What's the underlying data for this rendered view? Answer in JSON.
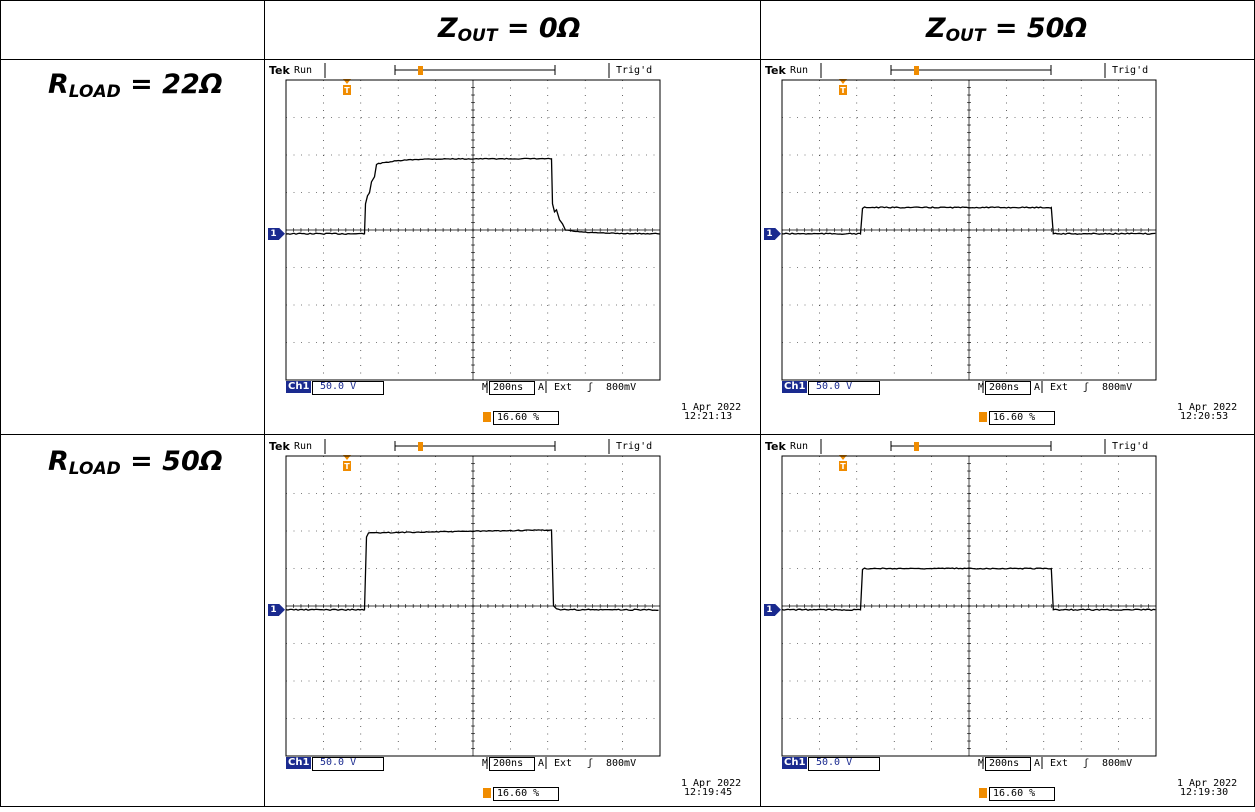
{
  "table": {
    "col_header_1": {
      "main": "Z",
      "sub": "OUT",
      "rest": " = 0Ω"
    },
    "col_header_2": {
      "main": "Z",
      "sub": "OUT",
      "rest": " = 50Ω"
    },
    "row_header_1": {
      "main": "R",
      "sub": "LOAD",
      "rest": " = 22Ω"
    },
    "row_header_2": {
      "main": "R",
      "sub": "LOAD",
      "rest": " = 50Ω"
    }
  },
  "scopes": [
    {
      "brand": "Tek",
      "status": "Run",
      "trig_status": "Trig'd",
      "ch_label": "Ch1",
      "ch_scale": "50.0 V",
      "m_label": "M",
      "timebase": "200ns",
      "a_label": "A",
      "source": "Ext",
      "slope": "ʃ",
      "level": "800mV",
      "trigger_pos": "16.60 %",
      "date": "1 Apr 2022",
      "time": "12:21:13",
      "trace": {
        "baseline_div": -0.1,
        "high_div": 1.9,
        "rise_div": 2.1,
        "fall_div": 7.1,
        "style": "ringing"
      }
    },
    {
      "brand": "Tek",
      "status": "Run",
      "trig_status": "Trig'd",
      "ch_label": "Ch1",
      "ch_scale": "50.0 V",
      "m_label": "M",
      "timebase": "200ns",
      "a_label": "A",
      "source": "Ext",
      "slope": "ʃ",
      "level": "800mV",
      "trigger_pos": "16.60 %",
      "date": "1 Apr 2022",
      "time": "12:20:53",
      "trace": {
        "baseline_div": -0.1,
        "high_div": 0.6,
        "rise_div": 2.1,
        "fall_div": 7.2,
        "style": "clean"
      }
    },
    {
      "brand": "Tek",
      "status": "Run",
      "trig_status": "Trig'd",
      "ch_label": "Ch1",
      "ch_scale": "50.0 V",
      "m_label": "M",
      "timebase": "200ns",
      "a_label": "A",
      "source": "Ext",
      "slope": "ʃ",
      "level": "800mV",
      "trigger_pos": "16.60 %",
      "date": "1 Apr 2022",
      "time": "12:19:45",
      "trace": {
        "baseline_div": -0.1,
        "high_div": 2.0,
        "rise_div": 2.1,
        "fall_div": 7.1,
        "style": "droop"
      }
    },
    {
      "brand": "Tek",
      "status": "Run",
      "trig_status": "Trig'd",
      "ch_label": "Ch1",
      "ch_scale": "50.0 V",
      "m_label": "M",
      "timebase": "200ns",
      "a_label": "A",
      "source": "Ext",
      "slope": "ʃ",
      "level": "800mV",
      "trigger_pos": "16.60 %",
      "date": "1 Apr 2022",
      "time": "12:19:30",
      "trace": {
        "baseline_div": -0.1,
        "high_div": 1.0,
        "rise_div": 2.1,
        "fall_div": 7.2,
        "style": "clean"
      }
    }
  ]
}
